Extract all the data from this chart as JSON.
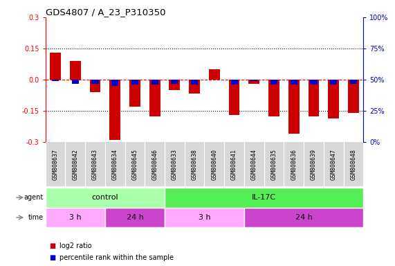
{
  "title": "GDS4807 / A_23_P310350",
  "samples": [
    "GSM808637",
    "GSM808642",
    "GSM808643",
    "GSM808634",
    "GSM808645",
    "GSM808646",
    "GSM808633",
    "GSM808638",
    "GSM808640",
    "GSM808641",
    "GSM808644",
    "GSM808635",
    "GSM808636",
    "GSM808639",
    "GSM808647",
    "GSM808648"
  ],
  "log2_ratio": [
    0.13,
    0.09,
    -0.06,
    -0.29,
    -0.13,
    -0.175,
    -0.05,
    -0.065,
    0.05,
    -0.17,
    -0.02,
    -0.175,
    -0.26,
    -0.175,
    -0.185,
    -0.16
  ],
  "percentile_rank": [
    0.49,
    0.47,
    0.47,
    0.45,
    0.46,
    0.46,
    0.47,
    0.46,
    0.5,
    0.46,
    0.49,
    0.46,
    0.46,
    0.46,
    0.46,
    0.47
  ],
  "ylim": [
    -0.3,
    0.3
  ],
  "yticks": [
    -0.3,
    -0.15,
    0.0,
    0.15,
    0.3
  ],
  "hline_red": 0.0,
  "hlines_dotted": [
    -0.15,
    0.15
  ],
  "bar_color_red": "#cc0000",
  "bar_color_blue": "#0000cc",
  "agent_groups": [
    {
      "label": "control",
      "start": 0,
      "end": 6,
      "color": "#aaffaa"
    },
    {
      "label": "IL-17C",
      "start": 6,
      "end": 16,
      "color": "#55ee55"
    }
  ],
  "time_groups": [
    {
      "label": "3 h",
      "start": 0,
      "end": 3,
      "color": "#ffaaff"
    },
    {
      "label": "24 h",
      "start": 3,
      "end": 6,
      "color": "#cc44cc"
    },
    {
      "label": "3 h",
      "start": 6,
      "end": 10,
      "color": "#ffaaff"
    },
    {
      "label": "24 h",
      "start": 10,
      "end": 16,
      "color": "#cc44cc"
    }
  ],
  "legend_items": [
    {
      "label": "log2 ratio",
      "color": "#cc0000"
    },
    {
      "label": "percentile rank within the sample",
      "color": "#0000cc"
    }
  ],
  "bar_width": 0.55,
  "pct_bar_width": 0.35,
  "background_color": "#ffffff",
  "right_axis_color": "#0000bb",
  "title_fontsize": 9.5,
  "tick_label_size": 6.0
}
